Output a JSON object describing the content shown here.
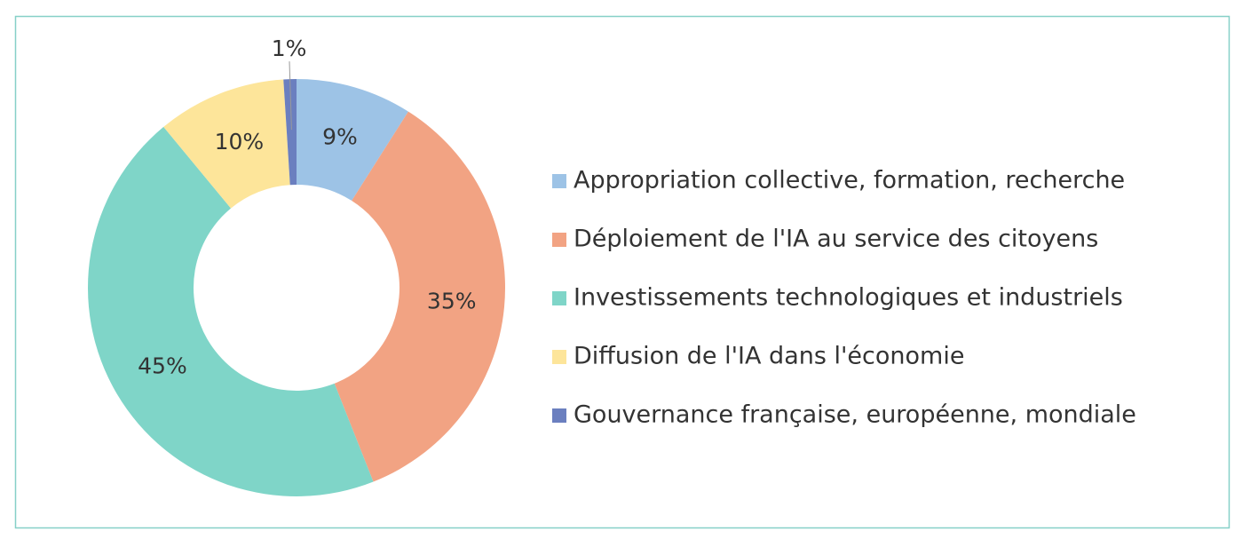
{
  "chart_data": {
    "type": "donut",
    "categories": [
      "Appropriation collective, formation, recherche",
      "Déploiement de l'IA au service des citoyens",
      "Investissements technologiques et industriels",
      "Diffusion de l'IA dans l'économie",
      "Gouvernance française, européenne, mondiale"
    ],
    "values": [
      9,
      35,
      45,
      10,
      1
    ],
    "value_labels": [
      "9%",
      "35%",
      "45%",
      "10%",
      "1%"
    ],
    "colors": [
      "#9dc3e6",
      "#f2a383",
      "#7fd5c8",
      "#fde59a",
      "#6b7fbf"
    ],
    "legend": "right"
  }
}
